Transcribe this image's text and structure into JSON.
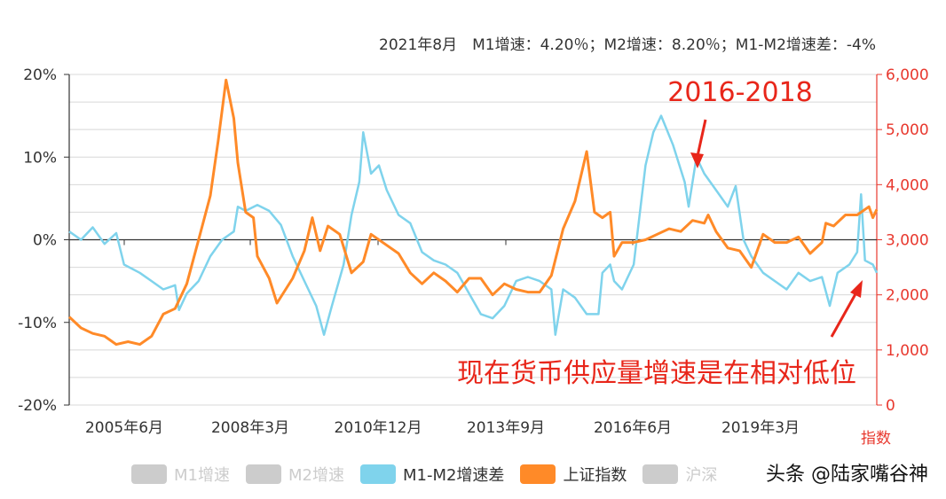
{
  "header": {
    "text": "2021年8月　M1增速：4.20％；M2增速：8.20％；M1-M2增速差：-4%"
  },
  "legend": [
    {
      "label": "M1增速",
      "color": "#cccccc",
      "label_color": "#cccccc"
    },
    {
      "label": "M2增速",
      "color": "#cccccc",
      "label_color": "#cccccc"
    },
    {
      "label": "M1-M2增速差",
      "color": "#7fd3ec",
      "label_color": "#333333"
    },
    {
      "label": "上证指数",
      "color": "#ff8a28",
      "label_color": "#333333"
    },
    {
      "label": "沪深",
      "color": "#cccccc",
      "label_color": "#cccccc"
    }
  ],
  "watermark": "头条 @陆家嘴谷神",
  "annotations": {
    "top": "2016-2018",
    "bottom": "现在货币供应量增速是在相对低位"
  },
  "chart_data": {
    "type": "line",
    "x_tick_labels": [
      "2005年6月",
      "2008年3月",
      "2010年12月",
      "2013年9月",
      "2016年6月",
      "2019年3月"
    ],
    "x_range": [
      "2004-06",
      "2021-08"
    ],
    "y_left": {
      "ticks": [
        "20%",
        "10%",
        "0%",
        "-10%",
        "-20%"
      ],
      "range": [
        -20,
        20
      ],
      "unit": "%"
    },
    "y_right": {
      "ticks": [
        "6,000",
        "5,000",
        "4,000",
        "3,000",
        "2,000",
        "1,000",
        "0"
      ],
      "range": [
        0,
        6000
      ],
      "label": "指数"
    },
    "series": [
      {
        "name": "M1-M2增速差",
        "axis": "left",
        "color": "#7fd3ec",
        "points": [
          [
            "2004-06",
            1
          ],
          [
            "2004-09",
            0
          ],
          [
            "2004-12",
            1.5
          ],
          [
            "2005-03",
            -0.5
          ],
          [
            "2005-06",
            0.8
          ],
          [
            "2005-08",
            -3
          ],
          [
            "2005-12",
            -4
          ],
          [
            "2006-03",
            -5
          ],
          [
            "2006-06",
            -6
          ],
          [
            "2006-09",
            -5.5
          ],
          [
            "2006-10",
            -8.5
          ],
          [
            "2006-12",
            -6.5
          ],
          [
            "2007-03",
            -5
          ],
          [
            "2007-06",
            -2
          ],
          [
            "2007-09",
            0
          ],
          [
            "2007-12",
            1
          ],
          [
            "2008-01",
            4
          ],
          [
            "2008-03",
            3.5
          ],
          [
            "2008-06",
            4.2
          ],
          [
            "2008-09",
            3.5
          ],
          [
            "2008-12",
            1.8
          ],
          [
            "2009-03",
            -2
          ],
          [
            "2009-06",
            -5
          ],
          [
            "2009-09",
            -8
          ],
          [
            "2009-11",
            -11.5
          ],
          [
            "2010-01",
            -8
          ],
          [
            "2010-04",
            -3
          ],
          [
            "2010-06",
            3
          ],
          [
            "2010-08",
            7
          ],
          [
            "2010-09",
            13
          ],
          [
            "2010-11",
            8
          ],
          [
            "2011-01",
            9
          ],
          [
            "2011-03",
            6
          ],
          [
            "2011-06",
            3
          ],
          [
            "2011-09",
            2
          ],
          [
            "2011-12",
            -1.5
          ],
          [
            "2012-03",
            -2.5
          ],
          [
            "2012-06",
            -3
          ],
          [
            "2012-09",
            -4
          ],
          [
            "2012-12",
            -6.5
          ],
          [
            "2013-03",
            -9
          ],
          [
            "2013-06",
            -9.5
          ],
          [
            "2013-09",
            -8
          ],
          [
            "2013-12",
            -5
          ],
          [
            "2014-03",
            -4.5
          ],
          [
            "2014-06",
            -5
          ],
          [
            "2014-09",
            -6
          ],
          [
            "2014-10",
            -11.5
          ],
          [
            "2014-12",
            -6
          ],
          [
            "2015-03",
            -7
          ],
          [
            "2015-06",
            -9
          ],
          [
            "2015-09",
            -9
          ],
          [
            "2015-10",
            -4
          ],
          [
            "2015-12",
            -3
          ],
          [
            "2016-01",
            -5
          ],
          [
            "2016-03",
            -6
          ],
          [
            "2016-06",
            -3
          ],
          [
            "2016-09",
            9
          ],
          [
            "2016-11",
            13
          ],
          [
            "2017-01",
            15
          ],
          [
            "2017-04",
            11.5
          ],
          [
            "2017-07",
            7
          ],
          [
            "2017-08",
            4
          ],
          [
            "2017-10",
            10
          ],
          [
            "2017-12",
            8
          ],
          [
            "2018-03",
            6
          ],
          [
            "2018-06",
            4
          ],
          [
            "2018-08",
            6.5
          ],
          [
            "2018-10",
            0
          ],
          [
            "2018-12",
            -2
          ],
          [
            "2019-03",
            -4
          ],
          [
            "2019-06",
            -5
          ],
          [
            "2019-09",
            -6
          ],
          [
            "2019-12",
            -4
          ],
          [
            "2020-03",
            -5
          ],
          [
            "2020-06",
            -4.5
          ],
          [
            "2020-08",
            -8
          ],
          [
            "2020-10",
            -4
          ],
          [
            "2021-01",
            -3
          ],
          [
            "2021-03",
            -1.5
          ],
          [
            "2021-04",
            5.5
          ],
          [
            "2021-05",
            -2.5
          ],
          [
            "2021-07",
            -3
          ],
          [
            "2021-08",
            -4
          ]
        ]
      },
      {
        "name": "上证指数",
        "axis": "right",
        "color": "#ff8a28",
        "points": [
          [
            "2004-06",
            1600
          ],
          [
            "2004-09",
            1400
          ],
          [
            "2004-12",
            1300
          ],
          [
            "2005-03",
            1250
          ],
          [
            "2005-06",
            1100
          ],
          [
            "2005-09",
            1150
          ],
          [
            "2005-12",
            1100
          ],
          [
            "2006-03",
            1250
          ],
          [
            "2006-06",
            1650
          ],
          [
            "2006-09",
            1750
          ],
          [
            "2006-12",
            2200
          ],
          [
            "2007-03",
            3000
          ],
          [
            "2007-06",
            3800
          ],
          [
            "2007-08",
            4800
          ],
          [
            "2007-10",
            5900
          ],
          [
            "2007-12",
            5200
          ],
          [
            "2008-01",
            4400
          ],
          [
            "2008-03",
            3500
          ],
          [
            "2008-05",
            3400
          ],
          [
            "2008-06",
            2700
          ],
          [
            "2008-09",
            2300
          ],
          [
            "2008-11",
            1850
          ],
          [
            "2009-03",
            2300
          ],
          [
            "2009-06",
            2800
          ],
          [
            "2009-08",
            3400
          ],
          [
            "2009-10",
            2800
          ],
          [
            "2009-12",
            3250
          ],
          [
            "2010-03",
            3100
          ],
          [
            "2010-06",
            2400
          ],
          [
            "2010-09",
            2600
          ],
          [
            "2010-11",
            3100
          ],
          [
            "2011-03",
            2900
          ],
          [
            "2011-06",
            2750
          ],
          [
            "2011-09",
            2400
          ],
          [
            "2011-12",
            2200
          ],
          [
            "2012-03",
            2400
          ],
          [
            "2012-06",
            2250
          ],
          [
            "2012-09",
            2050
          ],
          [
            "2012-12",
            2300
          ],
          [
            "2013-03",
            2300
          ],
          [
            "2013-06",
            2000
          ],
          [
            "2013-09",
            2200
          ],
          [
            "2013-12",
            2100
          ],
          [
            "2014-03",
            2050
          ],
          [
            "2014-06",
            2050
          ],
          [
            "2014-09",
            2350
          ],
          [
            "2014-12",
            3200
          ],
          [
            "2015-03",
            3700
          ],
          [
            "2015-06",
            4600
          ],
          [
            "2015-08",
            3500
          ],
          [
            "2015-10",
            3400
          ],
          [
            "2015-12",
            3500
          ],
          [
            "2016-01",
            2700
          ],
          [
            "2016-03",
            2950
          ],
          [
            "2016-06",
            2950
          ],
          [
            "2016-09",
            3000
          ],
          [
            "2016-12",
            3100
          ],
          [
            "2017-03",
            3200
          ],
          [
            "2017-06",
            3150
          ],
          [
            "2017-09",
            3350
          ],
          [
            "2017-12",
            3300
          ],
          [
            "2018-01",
            3450
          ],
          [
            "2018-03",
            3150
          ],
          [
            "2018-06",
            2850
          ],
          [
            "2018-09",
            2800
          ],
          [
            "2018-12",
            2500
          ],
          [
            "2019-03",
            3100
          ],
          [
            "2019-06",
            2950
          ],
          [
            "2019-09",
            2950
          ],
          [
            "2019-12",
            3050
          ],
          [
            "2020-03",
            2750
          ],
          [
            "2020-06",
            2950
          ],
          [
            "2020-07",
            3300
          ],
          [
            "2020-09",
            3250
          ],
          [
            "2020-12",
            3450
          ],
          [
            "2021-03",
            3450
          ],
          [
            "2021-06",
            3600
          ],
          [
            "2021-07",
            3400
          ],
          [
            "2021-08",
            3550
          ]
        ]
      }
    ]
  }
}
